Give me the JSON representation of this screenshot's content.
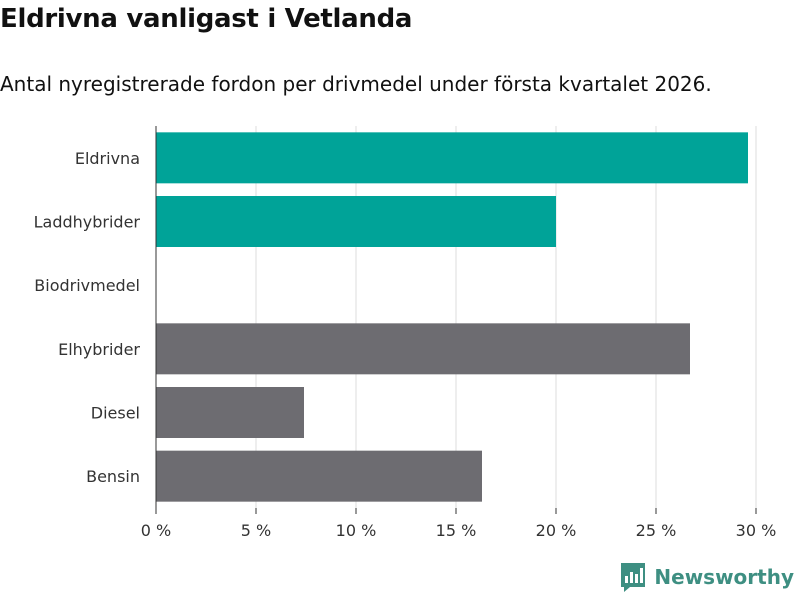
{
  "header": {
    "title": "Eldrivna vanligast i Vetlanda",
    "subtitle": "Antal nyregistrerade fordon per drivmedel under första kvartalet 2026."
  },
  "brand": {
    "name": "Newsworthy",
    "icon": "newsworthy-logo-icon",
    "color": "#3e8f82"
  },
  "colors": {
    "highlight": "#00a398",
    "default": "#6d6c71",
    "grid": "#dddddd"
  },
  "chart_data": {
    "type": "bar",
    "orientation": "horizontal",
    "title": "Eldrivna vanligast i Vetlanda",
    "subtitle": "Antal nyregistrerade fordon per drivmedel under första kvartalet 2026.",
    "categories": [
      "Eldrivna",
      "Laddhybrider",
      "Biodrivmedel",
      "Elhybrider",
      "Diesel",
      "Bensin"
    ],
    "values": [
      29.6,
      20.0,
      0,
      26.7,
      7.4,
      16.3
    ],
    "highlighted": [
      true,
      true,
      true,
      false,
      false,
      false
    ],
    "unit": "%",
    "xlim": [
      0,
      30
    ],
    "xticks": [
      0,
      5,
      10,
      15,
      20,
      25,
      30
    ],
    "xtick_labels": [
      "0 %",
      "5 %",
      "10 %",
      "15 %",
      "20 %",
      "25 %",
      "30 %"
    ],
    "grid": true,
    "xlabel": "",
    "ylabel": ""
  }
}
